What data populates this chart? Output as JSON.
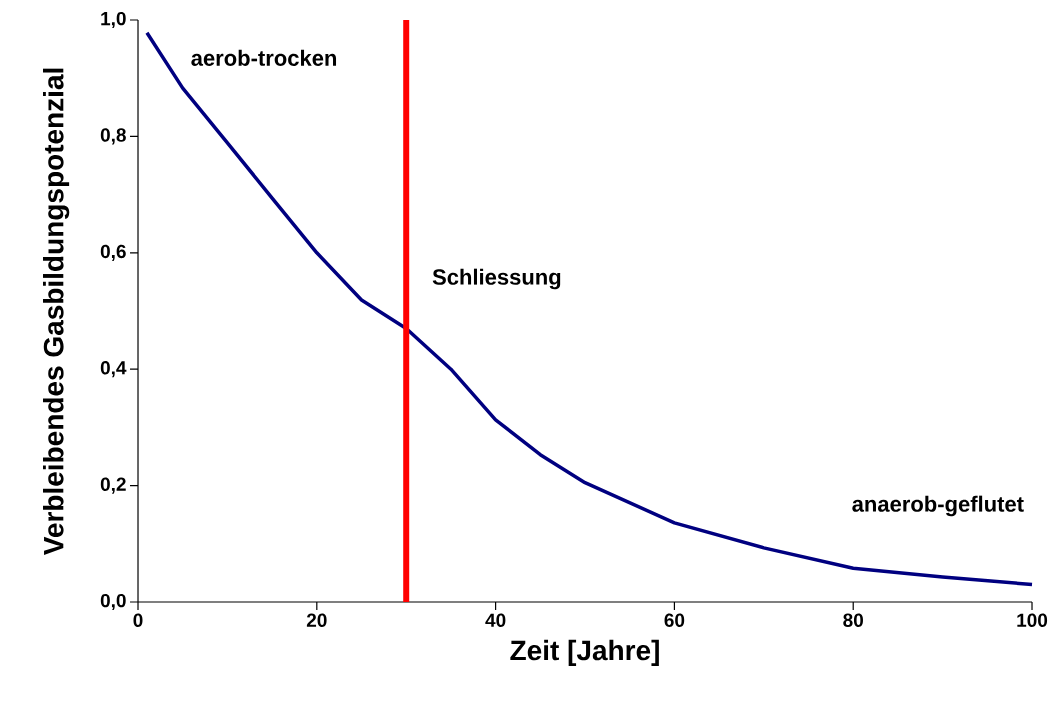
{
  "chart_data": {
    "type": "line",
    "xlabel": "Zeit [Jahre]",
    "ylabel": "Verbleibendes Gasbildungspotenzial",
    "x": [
      1,
      5,
      10,
      15,
      20,
      25,
      30,
      35,
      40,
      45,
      50,
      60,
      70,
      80,
      90,
      100
    ],
    "series": [
      {
        "color": "#000080",
        "values": [
          0.978,
          0.883,
          0.789,
          0.694,
          0.6,
          0.519,
          0.47,
          0.4,
          0.313,
          0.253,
          0.205,
          0.136,
          0.093,
          0.058,
          0.043,
          0.03
        ]
      }
    ],
    "xlim": [
      0,
      100
    ],
    "xticks": [
      0,
      20,
      40,
      60,
      80,
      100
    ],
    "ylim": [
      0,
      1
    ],
    "yticks": [
      {
        "value": 0,
        "label": "0,0"
      },
      {
        "value": 0.2,
        "label": "0,2"
      },
      {
        "value": 0.4,
        "label": "0,4"
      },
      {
        "value": 0.6,
        "label": "0,6"
      },
      {
        "value": 0.8,
        "label": "0,8"
      },
      {
        "value": 1,
        "label": "1,0"
      }
    ],
    "ref_lines": [
      {
        "axis": "x",
        "value": 30,
        "label": "Schliessung",
        "color": "#ff0000"
      }
    ],
    "annotations": [
      "aerob-trocken",
      "anaerob-geflutet"
    ],
    "grid": false,
    "marker": "none",
    "line_style": "solid"
  }
}
